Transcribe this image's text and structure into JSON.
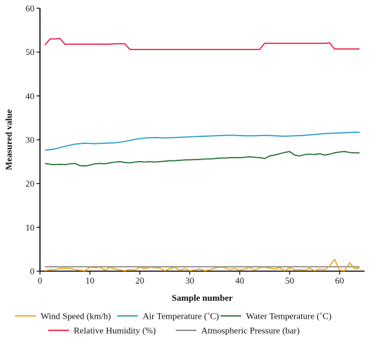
{
  "chart_data": {
    "type": "line",
    "xlabel": "Sample number",
    "ylabel": "Measured value",
    "xlim": [
      0,
      65
    ],
    "ylim": [
      0,
      60
    ],
    "xticks": [
      0,
      10,
      20,
      30,
      40,
      50,
      60
    ],
    "yticks": [
      0,
      10,
      20,
      30,
      40,
      50,
      60
    ],
    "grid": false,
    "legend_position": "bottom",
    "series": [
      {
        "name": "Wind Speed (km/h)",
        "color": "#e8a317",
        "x": [
          1,
          2,
          3,
          4,
          5,
          6,
          7,
          8,
          9,
          10,
          11,
          12,
          13,
          14,
          15,
          16,
          17,
          18,
          19,
          20,
          21,
          22,
          23,
          24,
          25,
          26,
          27,
          28,
          29,
          30,
          31,
          32,
          33,
          34,
          35,
          36,
          37,
          38,
          39,
          40,
          41,
          42,
          43,
          44,
          45,
          46,
          47,
          48,
          49,
          50,
          51,
          52,
          53,
          54,
          55,
          56,
          57,
          58,
          59,
          60,
          61,
          62,
          63,
          64
        ],
        "values": [
          0.1,
          0.3,
          0.4,
          0.6,
          0.7,
          0.6,
          0.4,
          0.2,
          0.1,
          0.9,
          0.8,
          0.9,
          0.2,
          0.9,
          0.5,
          0.3,
          0.1,
          0.4,
          0.2,
          0.9,
          0.6,
          0.9,
          0.8,
          0.7,
          0.1,
          0.6,
          0.9,
          0.2,
          0.6,
          0.1,
          0.3,
          0.5,
          0.1,
          0.3,
          0.7,
          0.9,
          0.8,
          0.4,
          0.6,
          0.2,
          0.5,
          0.9,
          0.2,
          0.8,
          0.9,
          0.7,
          0.5,
          0.8,
          0.1,
          0.8,
          0.3,
          0.4,
          0.2,
          0.7,
          0.1,
          0.5,
          0.3,
          1.2,
          2.7,
          0.2,
          0.1,
          1.9,
          0.6,
          0.7
        ]
      },
      {
        "name": "Air Temperature (˚C)",
        "color": "#1a9bc7",
        "x": [
          1,
          3,
          5,
          7,
          9,
          11,
          13,
          15,
          17,
          19,
          21,
          23,
          25,
          27,
          29,
          31,
          33,
          35,
          37,
          39,
          41,
          43,
          45,
          47,
          49,
          51,
          53,
          55,
          57,
          59,
          61,
          63,
          64
        ],
        "values": [
          27.6,
          27.9,
          28.5,
          29.0,
          29.2,
          29.1,
          29.2,
          29.3,
          29.6,
          30.1,
          30.4,
          30.5,
          30.4,
          30.5,
          30.6,
          30.7,
          30.8,
          30.9,
          31.0,
          31.0,
          30.9,
          30.9,
          31.0,
          30.9,
          30.8,
          30.9,
          31.0,
          31.2,
          31.4,
          31.5,
          31.6,
          31.7,
          31.7
        ]
      },
      {
        "name": "Water Temperature (˚C)",
        "color": "#1d6b2e",
        "x": [
          1,
          2,
          3,
          4,
          5,
          6,
          7,
          8,
          9,
          10,
          11,
          12,
          13,
          14,
          15,
          16,
          17,
          18,
          19,
          20,
          21,
          22,
          23,
          24,
          25,
          26,
          27,
          28,
          29,
          30,
          31,
          32,
          33,
          34,
          35,
          36,
          37,
          38,
          39,
          40,
          41,
          42,
          43,
          44,
          45,
          46,
          47,
          48,
          49,
          50,
          51,
          52,
          53,
          54,
          55,
          56,
          57,
          58,
          59,
          60,
          61,
          62,
          63,
          64
        ],
        "values": [
          24.6,
          24.4,
          24.3,
          24.4,
          24.3,
          24.5,
          24.6,
          24.1,
          24.0,
          24.2,
          24.5,
          24.6,
          24.5,
          24.7,
          24.9,
          25.0,
          24.8,
          24.7,
          24.9,
          25.0,
          24.9,
          25.0,
          24.9,
          25.0,
          25.1,
          25.2,
          25.2,
          25.3,
          25.4,
          25.4,
          25.5,
          25.5,
          25.6,
          25.6,
          25.7,
          25.8,
          25.8,
          25.9,
          25.9,
          25.9,
          26.0,
          26.1,
          26.0,
          25.9,
          25.7,
          26.3,
          26.5,
          26.8,
          27.1,
          27.3,
          26.5,
          26.3,
          26.6,
          26.7,
          26.6,
          26.8,
          26.5,
          26.7,
          27.0,
          27.2,
          27.3,
          27.1,
          27.0,
          27.0
        ]
      },
      {
        "name": "Relative Humidity (%)",
        "color": "#e8173d",
        "x": [
          1,
          2,
          3,
          4,
          5,
          6,
          7,
          8,
          9,
          10,
          11,
          12,
          13,
          14,
          15,
          16,
          17,
          18,
          19,
          20,
          21,
          22,
          23,
          24,
          25,
          26,
          27,
          28,
          29,
          30,
          31,
          32,
          33,
          34,
          35,
          36,
          37,
          38,
          39,
          40,
          41,
          42,
          43,
          44,
          45,
          46,
          47,
          48,
          49,
          50,
          51,
          52,
          53,
          54,
          55,
          56,
          57,
          58,
          59,
          60,
          61,
          62,
          63,
          64
        ],
        "values": [
          51.6,
          53.0,
          53.0,
          53.1,
          51.8,
          51.8,
          51.8,
          51.8,
          51.8,
          51.8,
          51.8,
          51.8,
          51.8,
          51.8,
          51.9,
          51.9,
          51.9,
          50.6,
          50.6,
          50.6,
          50.6,
          50.6,
          50.6,
          50.6,
          50.6,
          50.6,
          50.6,
          50.6,
          50.6,
          50.6,
          50.6,
          50.6,
          50.6,
          50.6,
          50.6,
          50.6,
          50.6,
          50.6,
          50.6,
          50.6,
          50.6,
          50.6,
          50.6,
          50.6,
          52.0,
          52.0,
          52.0,
          52.0,
          52.0,
          52.0,
          52.0,
          52.0,
          52.0,
          52.0,
          52.0,
          52.0,
          52.0,
          52.1,
          50.7,
          50.7,
          50.7,
          50.7,
          50.7,
          50.7
        ]
      },
      {
        "name": "Atmospheric Pressure (bar)",
        "color": "#808080",
        "x": [
          1,
          64
        ],
        "values": [
          1.0,
          1.0
        ]
      }
    ]
  }
}
